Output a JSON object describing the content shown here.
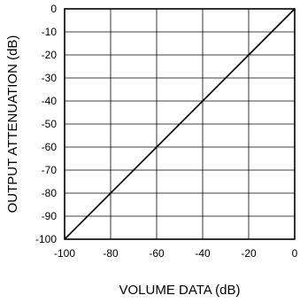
{
  "chart_data": {
    "type": "line",
    "title": "",
    "xlabel": "VOLUME DATA (dB)",
    "ylabel": "OUTPUT ATTENUATION (dB)",
    "xlim": [
      -100,
      0
    ],
    "ylim": [
      -100,
      0
    ],
    "x_ticks": [
      -100,
      -80,
      -60,
      -40,
      -20,
      0
    ],
    "y_ticks": [
      0,
      -10,
      -20,
      -30,
      -40,
      -50,
      -60,
      -70,
      -80,
      -90,
      -100
    ],
    "x_tick_labels": [
      "-100",
      "-80",
      "-60",
      "-40",
      "-20",
      "0"
    ],
    "y_tick_labels": [
      "0",
      "-10",
      "-20",
      "-30",
      "-40",
      "-50",
      "-60",
      "-70",
      "-80",
      "-90",
      "-100"
    ],
    "grid": true,
    "legend": "none",
    "series": [
      {
        "x": [
          -100,
          -80,
          -60,
          -40,
          -20,
          0
        ],
        "y": [
          -100,
          -80,
          -60,
          -40,
          -20,
          0
        ],
        "color": "#000000"
      }
    ]
  }
}
